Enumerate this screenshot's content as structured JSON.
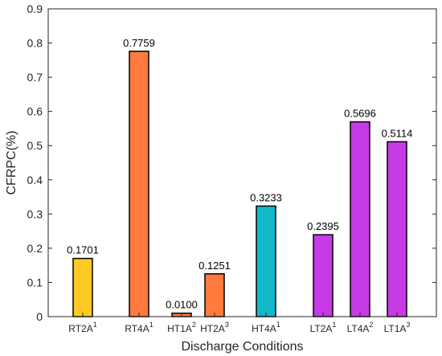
{
  "chart_data": {
    "type": "bar",
    "title": "",
    "xlabel": "Discharge Conditions",
    "ylabel": "CFRPC(%)",
    "ylim": [
      0,
      0.9
    ],
    "yticks": [
      "0",
      "0.1",
      "0.2",
      "0.3",
      "0.4",
      "0.5",
      "0.6",
      "0.7",
      "0.8",
      "0.9"
    ],
    "grid": false,
    "legend": "none",
    "bars": [
      {
        "label": "RT2A",
        "sup": "1",
        "value": 0.1701,
        "value_label": "0.1701",
        "color": "#FFC926"
      },
      {
        "label": "RT4A",
        "sup": "1",
        "value": 0.7759,
        "value_label": "0.7759",
        "color": "#FF7A3D"
      },
      {
        "label": "HT1A",
        "sup": "2",
        "value": 0.01,
        "value_label": "0.0100",
        "color": "#FF7A3D"
      },
      {
        "label": "HT2A",
        "sup": "3",
        "value": 0.1251,
        "value_label": "0.1251",
        "color": "#FF7A3D"
      },
      {
        "label": "HT4A",
        "sup": "1",
        "value": 0.3233,
        "value_label": "0.3233",
        "color": "#12B8C8"
      },
      {
        "label": "LT2A",
        "sup": "1",
        "value": 0.2395,
        "value_label": "0.2395",
        "color": "#C63BE6"
      },
      {
        "label": "LT4A",
        "sup": "2",
        "value": 0.5696,
        "value_label": "0.5696",
        "color": "#C63BE6"
      },
      {
        "label": "LT1A",
        "sup": "3",
        "value": 0.5114,
        "value_label": "0.5114",
        "color": "#C63BE6"
      }
    ]
  }
}
